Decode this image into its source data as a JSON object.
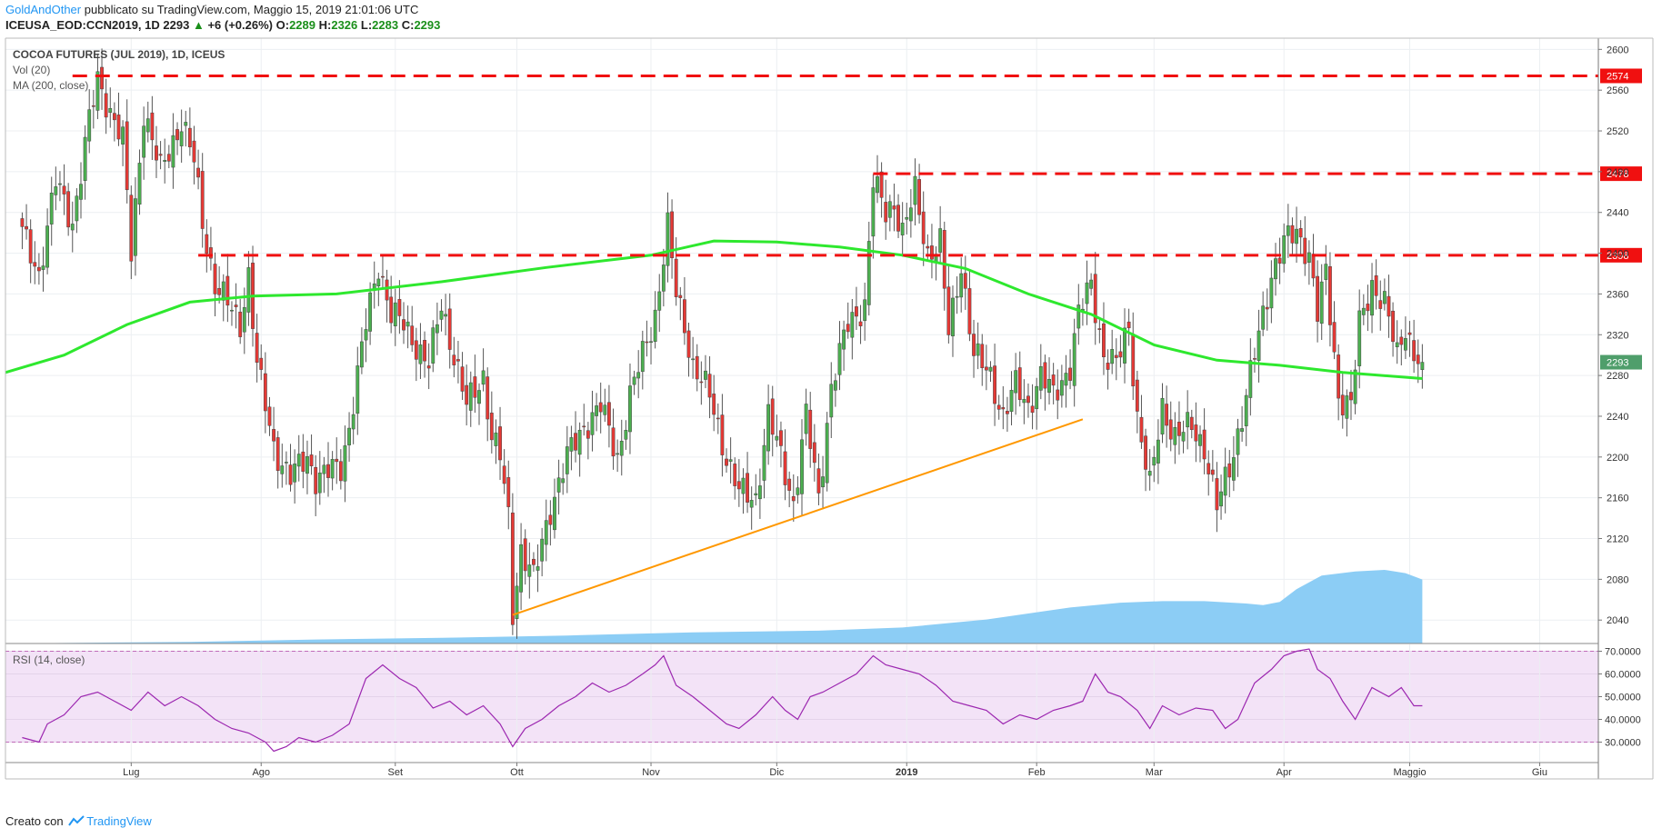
{
  "header": {
    "author": "GoldAndOther",
    "published_text": "pubblicato su TradingView.com, Maggio 15, 2019 21:01:06 UTC",
    "symbol_line": "ICEUSA_EOD:CCN2019, 1D",
    "last": "2293",
    "arrow": "▲",
    "change": "+6 (+0.26%)",
    "o_label": "O:",
    "o_val": "2289",
    "h_label": "H:",
    "h_val": "2326",
    "l_label": "L:",
    "l_val": "2283",
    "c_label": "C:",
    "c_val": "2293"
  },
  "legend": {
    "title": "COCOA FUTURES (JUL 2019), 1D, ICEUS",
    "vol": "Vol (20)",
    "ma": "MA (200, close)",
    "rsi": "RSI (14, close)"
  },
  "footer": {
    "created_with": "Creato con",
    "brand": "TradingView"
  },
  "colors": {
    "up": "#4caf50",
    "down": "#e53935",
    "ma": "#2ee82e",
    "trend": "#ff9800",
    "resistance": "#f01010",
    "volume": "#8ccdf5",
    "rsi_line": "#9c27b0",
    "rsi_band": "#f3e3f7",
    "last_price": "#4f9e6b"
  },
  "chart_data": [
    {
      "type": "candlestick",
      "title": "COCOA FUTURES (JUL 2019), 1D, ICEUS",
      "y_ticks": [
        2040,
        2080,
        2120,
        2160,
        2200,
        2240,
        2280,
        2320,
        2360,
        2400,
        2440,
        2480,
        2520,
        2560,
        2600
      ],
      "ylim": [
        2017,
        2611
      ],
      "x_ticks": [
        {
          "label": "Lug",
          "day": 26
        },
        {
          "label": "Ago",
          "day": 57
        },
        {
          "label": "Set",
          "day": 89
        },
        {
          "label": "Ott",
          "day": 118
        },
        {
          "label": "Nov",
          "day": 150
        },
        {
          "label": "Dic",
          "day": 180
        },
        {
          "label": "2019",
          "day": 211
        },
        {
          "label": "Feb",
          "day": 242
        },
        {
          "label": "Mar",
          "day": 270
        },
        {
          "label": "Apr",
          "day": 301
        },
        {
          "label": "Maggio",
          "day": 331
        },
        {
          "label": "Giu",
          "day": 362
        }
      ],
      "xlim": [
        -4,
        376
      ],
      "candle_anchors": [
        {
          "day": 0,
          "close": 2420
        },
        {
          "day": 4,
          "close": 2380
        },
        {
          "day": 8,
          "close": 2470
        },
        {
          "day": 12,
          "close": 2430
        },
        {
          "day": 16,
          "close": 2530
        },
        {
          "day": 18,
          "close": 2570
        },
        {
          "day": 20,
          "close": 2550
        },
        {
          "day": 24,
          "close": 2510
        },
        {
          "day": 26,
          "close": 2400
        },
        {
          "day": 29,
          "close": 2540
        },
        {
          "day": 33,
          "close": 2480
        },
        {
          "day": 38,
          "close": 2530
        },
        {
          "day": 41,
          "close": 2490
        },
        {
          "day": 43,
          "close": 2430
        },
        {
          "day": 46,
          "close": 2370
        },
        {
          "day": 52,
          "close": 2330
        },
        {
          "day": 54,
          "close": 2380
        },
        {
          "day": 56,
          "close": 2290
        },
        {
          "day": 60,
          "close": 2210
        },
        {
          "day": 64,
          "close": 2180
        },
        {
          "day": 68,
          "close": 2200
        },
        {
          "day": 70,
          "close": 2180
        },
        {
          "day": 76,
          "close": 2190
        },
        {
          "day": 78,
          "close": 2230
        },
        {
          "day": 82,
          "close": 2330
        },
        {
          "day": 85,
          "close": 2390
        },
        {
          "day": 88,
          "close": 2340
        },
        {
          "day": 91,
          "close": 2330
        },
        {
          "day": 94,
          "close": 2310
        },
        {
          "day": 97,
          "close": 2290
        },
        {
          "day": 100,
          "close": 2350
        },
        {
          "day": 103,
          "close": 2300
        },
        {
          "day": 106,
          "close": 2250
        },
        {
          "day": 110,
          "close": 2280
        },
        {
          "day": 112,
          "close": 2220
        },
        {
          "day": 114,
          "close": 2200
        },
        {
          "day": 116,
          "close": 2140
        },
        {
          "day": 117,
          "close": 2048
        },
        {
          "day": 119,
          "close": 2110
        },
        {
          "day": 122,
          "close": 2080
        },
        {
          "day": 126,
          "close": 2150
        },
        {
          "day": 130,
          "close": 2200
        },
        {
          "day": 134,
          "close": 2230
        },
        {
          "day": 138,
          "close": 2250
        },
        {
          "day": 142,
          "close": 2200
        },
        {
          "day": 145,
          "close": 2260
        },
        {
          "day": 148,
          "close": 2300
        },
        {
          "day": 151,
          "close": 2340
        },
        {
          "day": 154,
          "close": 2425
        },
        {
          "day": 156,
          "close": 2360
        },
        {
          "day": 158,
          "close": 2330
        },
        {
          "day": 160,
          "close": 2290
        },
        {
          "day": 164,
          "close": 2260
        },
        {
          "day": 168,
          "close": 2200
        },
        {
          "day": 171,
          "close": 2165
        },
        {
          "day": 175,
          "close": 2160
        },
        {
          "day": 178,
          "close": 2240
        },
        {
          "day": 181,
          "close": 2200
        },
        {
          "day": 184,
          "close": 2155
        },
        {
          "day": 187,
          "close": 2240
        },
        {
          "day": 190,
          "close": 2160
        },
        {
          "day": 193,
          "close": 2270
        },
        {
          "day": 197,
          "close": 2330
        },
        {
          "day": 201,
          "close": 2350
        },
        {
          "day": 203,
          "close": 2470
        },
        {
          "day": 206,
          "close": 2440
        },
        {
          "day": 208,
          "close": 2450
        },
        {
          "day": 210,
          "close": 2420
        },
        {
          "day": 213,
          "close": 2460
        },
        {
          "day": 216,
          "close": 2400
        },
        {
          "day": 219,
          "close": 2410
        },
        {
          "day": 221,
          "close": 2320
        },
        {
          "day": 224,
          "close": 2390
        },
        {
          "day": 227,
          "close": 2300
        },
        {
          "day": 231,
          "close": 2280
        },
        {
          "day": 234,
          "close": 2240
        },
        {
          "day": 237,
          "close": 2270
        },
        {
          "day": 240,
          "close": 2250
        },
        {
          "day": 243,
          "close": 2280
        },
        {
          "day": 246,
          "close": 2260
        },
        {
          "day": 250,
          "close": 2290
        },
        {
          "day": 252,
          "close": 2340
        },
        {
          "day": 255,
          "close": 2370
        },
        {
          "day": 258,
          "close": 2300
        },
        {
          "day": 261,
          "close": 2290
        },
        {
          "day": 264,
          "close": 2330
        },
        {
          "day": 266,
          "close": 2240
        },
        {
          "day": 269,
          "close": 2170
        },
        {
          "day": 272,
          "close": 2250
        },
        {
          "day": 275,
          "close": 2220
        },
        {
          "day": 279,
          "close": 2230
        },
        {
          "day": 282,
          "close": 2210
        },
        {
          "day": 285,
          "close": 2150
        },
        {
          "day": 288,
          "close": 2190
        },
        {
          "day": 291,
          "close": 2240
        },
        {
          "day": 295,
          "close": 2320
        },
        {
          "day": 298,
          "close": 2380
        },
        {
          "day": 301,
          "close": 2410
        },
        {
          "day": 304,
          "close": 2420
        },
        {
          "day": 307,
          "close": 2400
        },
        {
          "day": 309,
          "close": 2340
        },
        {
          "day": 311,
          "close": 2380
        },
        {
          "day": 314,
          "close": 2260
        },
        {
          "day": 317,
          "close": 2250
        },
        {
          "day": 319,
          "close": 2330
        },
        {
          "day": 322,
          "close": 2370
        },
        {
          "day": 325,
          "close": 2350
        },
        {
          "day": 328,
          "close": 2300
        },
        {
          "day": 330,
          "close": 2330
        },
        {
          "day": 332,
          "close": 2300
        },
        {
          "day": 334,
          "close": 2293
        }
      ],
      "ma_200": [
        {
          "day": -4,
          "value": 2283
        },
        {
          "day": 10,
          "value": 2300
        },
        {
          "day": 25,
          "value": 2330
        },
        {
          "day": 40,
          "value": 2352
        },
        {
          "day": 55,
          "value": 2358
        },
        {
          "day": 75,
          "value": 2360
        },
        {
          "day": 100,
          "value": 2372
        },
        {
          "day": 125,
          "value": 2386
        },
        {
          "day": 150,
          "value": 2398
        },
        {
          "day": 165,
          "value": 2412
        },
        {
          "day": 180,
          "value": 2411
        },
        {
          "day": 195,
          "value": 2406
        },
        {
          "day": 210,
          "value": 2398
        },
        {
          "day": 225,
          "value": 2385
        },
        {
          "day": 240,
          "value": 2360
        },
        {
          "day": 255,
          "value": 2340
        },
        {
          "day": 270,
          "value": 2310
        },
        {
          "day": 285,
          "value": 2295
        },
        {
          "day": 300,
          "value": 2290
        },
        {
          "day": 315,
          "value": 2283
        },
        {
          "day": 334,
          "value": 2277
        }
      ],
      "resistance_levels": [
        {
          "price": 2574,
          "label": "2574",
          "from_day": 12
        },
        {
          "price": 2478,
          "label": "2478",
          "from_day": 203
        },
        {
          "price": 2398,
          "label": "2398",
          "from_day": 42
        }
      ],
      "trendline": [
        {
          "day": 117,
          "price": 2045
        },
        {
          "day": 253,
          "price": 2237
        }
      ],
      "last_price": {
        "price": 2293,
        "label": "2293"
      }
    },
    {
      "type": "area",
      "name": "Vol (20)",
      "values": [
        {
          "day": -4,
          "v": 0.0
        },
        {
          "day": 40,
          "v": 0.02
        },
        {
          "day": 70,
          "v": 0.05
        },
        {
          "day": 100,
          "v": 0.07
        },
        {
          "day": 130,
          "v": 0.1
        },
        {
          "day": 160,
          "v": 0.14
        },
        {
          "day": 190,
          "v": 0.16
        },
        {
          "day": 210,
          "v": 0.2
        },
        {
          "day": 230,
          "v": 0.3
        },
        {
          "day": 250,
          "v": 0.45
        },
        {
          "day": 262,
          "v": 0.51
        },
        {
          "day": 272,
          "v": 0.53
        },
        {
          "day": 282,
          "v": 0.53
        },
        {
          "day": 292,
          "v": 0.5
        },
        {
          "day": 296,
          "v": 0.48
        },
        {
          "day": 300,
          "v": 0.52
        },
        {
          "day": 304,
          "v": 0.68
        },
        {
          "day": 310,
          "v": 0.85
        },
        {
          "day": 318,
          "v": 0.9
        },
        {
          "day": 325,
          "v": 0.92
        },
        {
          "day": 330,
          "v": 0.88
        },
        {
          "day": 334,
          "v": 0.8
        }
      ]
    },
    {
      "type": "line",
      "name": "RSI (14, close)",
      "y_ticks": [
        30,
        40,
        50,
        60,
        70
      ],
      "tick_labels": [
        "30.0000",
        "40.0000",
        "50.0000",
        "60.0000",
        "70.0000"
      ],
      "ylim": [
        21,
        73
      ],
      "band": [
        30,
        70
      ],
      "values": [
        {
          "day": 0,
          "v": 32
        },
        {
          "day": 4,
          "v": 30
        },
        {
          "day": 6,
          "v": 38
        },
        {
          "day": 10,
          "v": 42
        },
        {
          "day": 14,
          "v": 50
        },
        {
          "day": 18,
          "v": 52
        },
        {
          "day": 22,
          "v": 48
        },
        {
          "day": 26,
          "v": 44
        },
        {
          "day": 30,
          "v": 52
        },
        {
          "day": 34,
          "v": 46
        },
        {
          "day": 38,
          "v": 50
        },
        {
          "day": 42,
          "v": 46
        },
        {
          "day": 46,
          "v": 40
        },
        {
          "day": 50,
          "v": 36
        },
        {
          "day": 54,
          "v": 34
        },
        {
          "day": 58,
          "v": 30
        },
        {
          "day": 60,
          "v": 26
        },
        {
          "day": 63,
          "v": 28
        },
        {
          "day": 66,
          "v": 32
        },
        {
          "day": 70,
          "v": 30
        },
        {
          "day": 74,
          "v": 33
        },
        {
          "day": 78,
          "v": 38
        },
        {
          "day": 82,
          "v": 58
        },
        {
          "day": 86,
          "v": 64
        },
        {
          "day": 90,
          "v": 58
        },
        {
          "day": 94,
          "v": 54
        },
        {
          "day": 98,
          "v": 45
        },
        {
          "day": 102,
          "v": 48
        },
        {
          "day": 106,
          "v": 42
        },
        {
          "day": 110,
          "v": 46
        },
        {
          "day": 114,
          "v": 38
        },
        {
          "day": 117,
          "v": 28
        },
        {
          "day": 120,
          "v": 36
        },
        {
          "day": 124,
          "v": 40
        },
        {
          "day": 128,
          "v": 46
        },
        {
          "day": 132,
          "v": 50
        },
        {
          "day": 136,
          "v": 56
        },
        {
          "day": 140,
          "v": 52
        },
        {
          "day": 144,
          "v": 55
        },
        {
          "day": 148,
          "v": 60
        },
        {
          "day": 151,
          "v": 64
        },
        {
          "day": 153,
          "v": 68
        },
        {
          "day": 156,
          "v": 55
        },
        {
          "day": 160,
          "v": 50
        },
        {
          "day": 164,
          "v": 44
        },
        {
          "day": 168,
          "v": 38
        },
        {
          "day": 171,
          "v": 36
        },
        {
          "day": 175,
          "v": 42
        },
        {
          "day": 179,
          "v": 50
        },
        {
          "day": 182,
          "v": 44
        },
        {
          "day": 185,
          "v": 40
        },
        {
          "day": 188,
          "v": 50
        },
        {
          "day": 191,
          "v": 52
        },
        {
          "day": 195,
          "v": 56
        },
        {
          "day": 199,
          "v": 60
        },
        {
          "day": 203,
          "v": 68
        },
        {
          "day": 206,
          "v": 64
        },
        {
          "day": 210,
          "v": 62
        },
        {
          "day": 214,
          "v": 60
        },
        {
          "day": 218,
          "v": 55
        },
        {
          "day": 222,
          "v": 48
        },
        {
          "day": 226,
          "v": 46
        },
        {
          "day": 230,
          "v": 44
        },
        {
          "day": 234,
          "v": 38
        },
        {
          "day": 238,
          "v": 42
        },
        {
          "day": 242,
          "v": 40
        },
        {
          "day": 246,
          "v": 44
        },
        {
          "day": 250,
          "v": 46
        },
        {
          "day": 253,
          "v": 48
        },
        {
          "day": 256,
          "v": 60
        },
        {
          "day": 259,
          "v": 52
        },
        {
          "day": 262,
          "v": 50
        },
        {
          "day": 266,
          "v": 44
        },
        {
          "day": 269,
          "v": 36
        },
        {
          "day": 272,
          "v": 46
        },
        {
          "day": 276,
          "v": 42
        },
        {
          "day": 280,
          "v": 45
        },
        {
          "day": 284,
          "v": 44
        },
        {
          "day": 287,
          "v": 36
        },
        {
          "day": 290,
          "v": 40
        },
        {
          "day": 294,
          "v": 56
        },
        {
          "day": 298,
          "v": 62
        },
        {
          "day": 301,
          "v": 68
        },
        {
          "day": 304,
          "v": 70
        },
        {
          "day": 307,
          "v": 71
        },
        {
          "day": 309,
          "v": 62
        },
        {
          "day": 312,
          "v": 58
        },
        {
          "day": 315,
          "v": 48
        },
        {
          "day": 318,
          "v": 40
        },
        {
          "day": 322,
          "v": 54
        },
        {
          "day": 326,
          "v": 50
        },
        {
          "day": 329,
          "v": 54
        },
        {
          "day": 332,
          "v": 46
        },
        {
          "day": 334,
          "v": 46
        }
      ]
    }
  ]
}
